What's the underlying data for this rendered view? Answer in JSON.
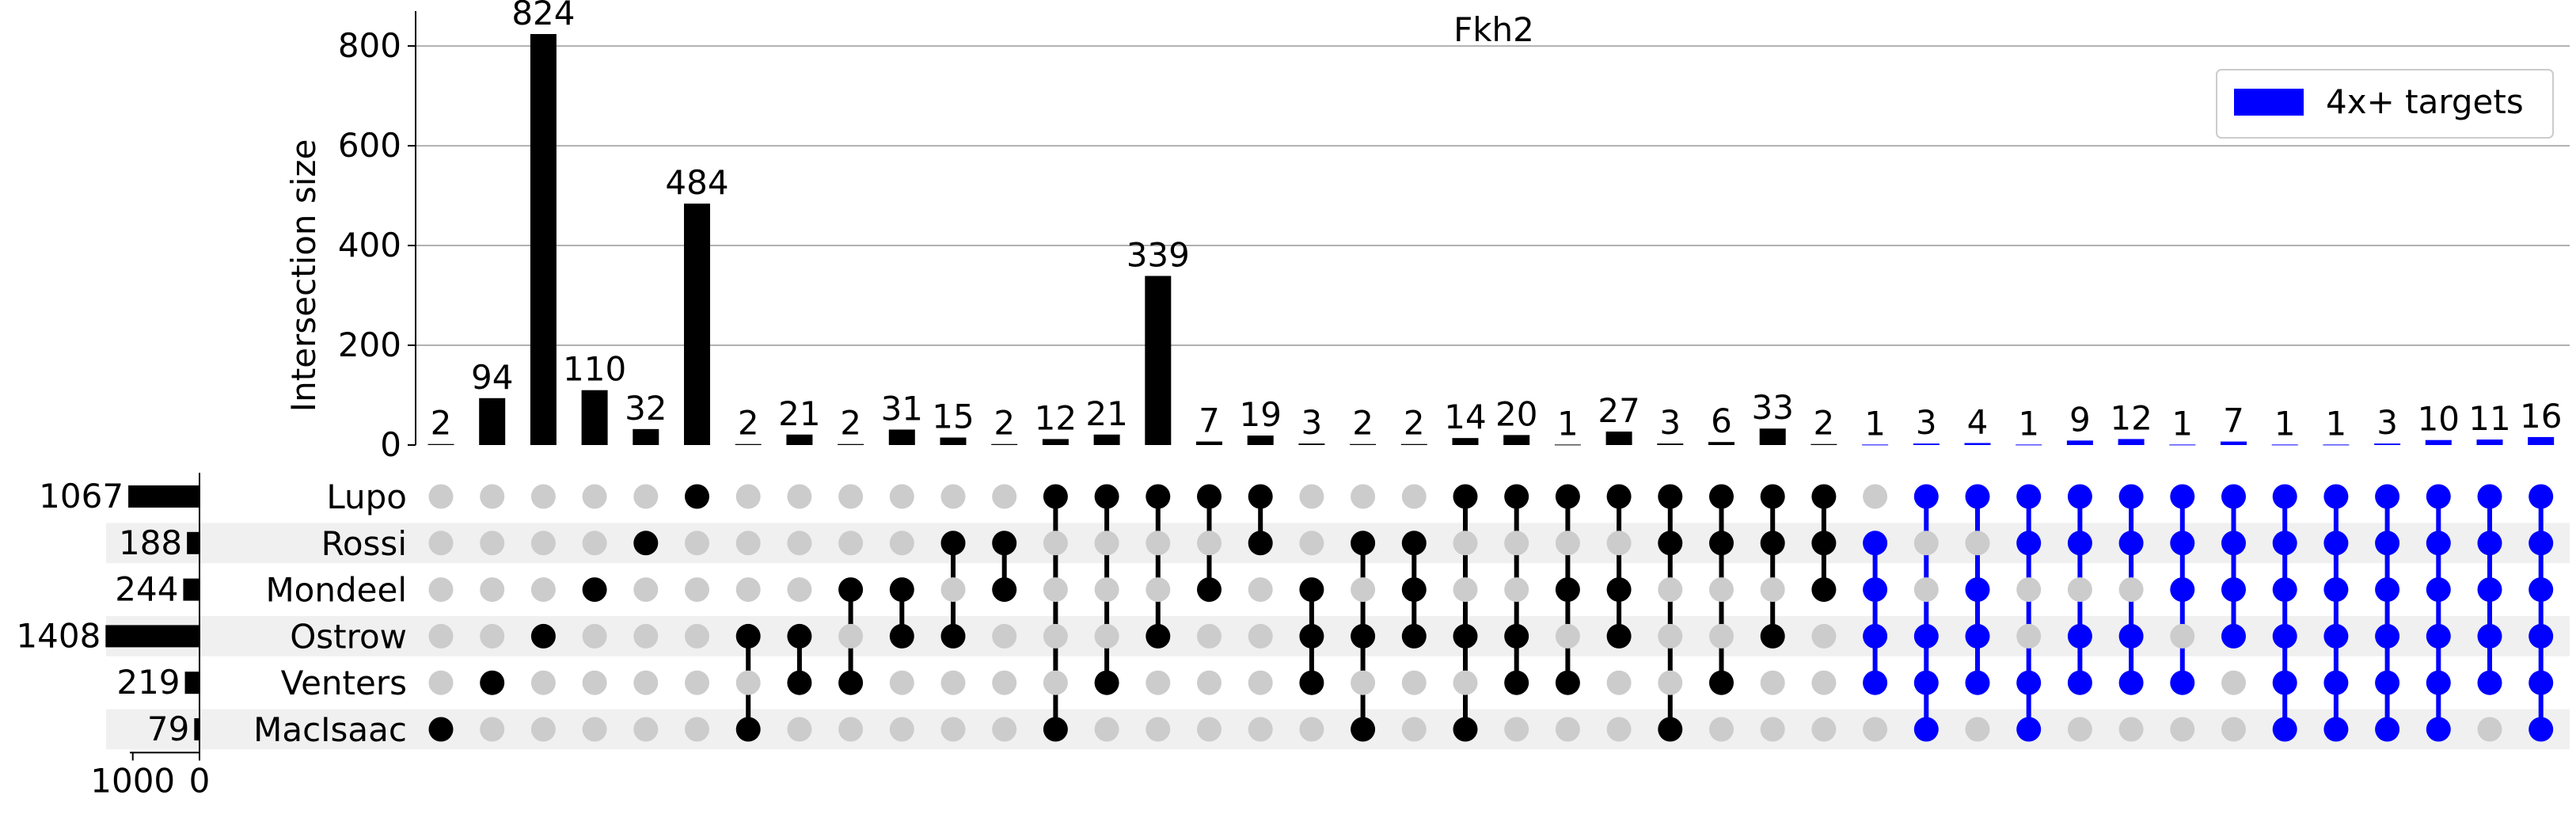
{
  "chart_data": {
    "type": "upset",
    "title": "Fkh2",
    "ylabel": "Intersection size",
    "ylim": [
      0,
      870
    ],
    "yticks": [
      0,
      200,
      400,
      600,
      800
    ],
    "grid": true,
    "legend": {
      "label": "4x+ targets",
      "color": "#0000ff",
      "position": "top-right"
    },
    "sets": [
      {
        "name": "Lupo",
        "size": 1067
      },
      {
        "name": "Rossi",
        "size": 188
      },
      {
        "name": "Mondeel",
        "size": 244
      },
      {
        "name": "Ostrow",
        "size": 1408
      },
      {
        "name": "Venters",
        "size": 219
      },
      {
        "name": "MacIsaac",
        "size": 79
      }
    ],
    "set_size_axis": {
      "ticks": [
        1000,
        0
      ],
      "max": 1400
    },
    "intersections": [
      {
        "value": 2,
        "members": [
          "MacIsaac"
        ],
        "highlight": false
      },
      {
        "value": 94,
        "members": [
          "Venters"
        ],
        "highlight": false
      },
      {
        "value": 824,
        "members": [
          "Ostrow"
        ],
        "highlight": false
      },
      {
        "value": 110,
        "members": [
          "Mondeel"
        ],
        "highlight": false
      },
      {
        "value": 32,
        "members": [
          "Rossi"
        ],
        "highlight": false
      },
      {
        "value": 484,
        "members": [
          "Lupo"
        ],
        "highlight": false
      },
      {
        "value": 2,
        "members": [
          "Ostrow",
          "MacIsaac"
        ],
        "highlight": false
      },
      {
        "value": 21,
        "members": [
          "Ostrow",
          "Venters"
        ],
        "highlight": false
      },
      {
        "value": 2,
        "members": [
          "Mondeel",
          "Venters"
        ],
        "highlight": false
      },
      {
        "value": 31,
        "members": [
          "Mondeel",
          "Ostrow"
        ],
        "highlight": false
      },
      {
        "value": 15,
        "members": [
          "Rossi",
          "Ostrow"
        ],
        "highlight": false
      },
      {
        "value": 2,
        "members": [
          "Rossi",
          "Mondeel"
        ],
        "highlight": false
      },
      {
        "value": 12,
        "members": [
          "Lupo",
          "MacIsaac"
        ],
        "highlight": false
      },
      {
        "value": 21,
        "members": [
          "Lupo",
          "Venters"
        ],
        "highlight": false
      },
      {
        "value": 339,
        "members": [
          "Lupo",
          "Ostrow"
        ],
        "highlight": false
      },
      {
        "value": 7,
        "members": [
          "Lupo",
          "Mondeel"
        ],
        "highlight": false
      },
      {
        "value": 19,
        "members": [
          "Lupo",
          "Rossi"
        ],
        "highlight": false
      },
      {
        "value": 3,
        "members": [
          "Mondeel",
          "Ostrow",
          "Venters"
        ],
        "highlight": false
      },
      {
        "value": 2,
        "members": [
          "Rossi",
          "Ostrow",
          "MacIsaac"
        ],
        "highlight": false
      },
      {
        "value": 2,
        "members": [
          "Rossi",
          "Mondeel",
          "Ostrow"
        ],
        "highlight": false
      },
      {
        "value": 14,
        "members": [
          "Lupo",
          "Ostrow",
          "MacIsaac"
        ],
        "highlight": false
      },
      {
        "value": 20,
        "members": [
          "Lupo",
          "Ostrow",
          "Venters"
        ],
        "highlight": false
      },
      {
        "value": 1,
        "members": [
          "Lupo",
          "Mondeel",
          "Venters"
        ],
        "highlight": false
      },
      {
        "value": 27,
        "members": [
          "Lupo",
          "Mondeel",
          "Ostrow"
        ],
        "highlight": false
      },
      {
        "value": 3,
        "members": [
          "Lupo",
          "Rossi",
          "MacIsaac"
        ],
        "highlight": false
      },
      {
        "value": 6,
        "members": [
          "Lupo",
          "Rossi",
          "Venters"
        ],
        "highlight": false
      },
      {
        "value": 33,
        "members": [
          "Lupo",
          "Rossi",
          "Ostrow"
        ],
        "highlight": false
      },
      {
        "value": 2,
        "members": [
          "Lupo",
          "Rossi",
          "Mondeel"
        ],
        "highlight": false
      },
      {
        "value": 1,
        "members": [
          "Rossi",
          "Mondeel",
          "Ostrow",
          "Venters"
        ],
        "highlight": true
      },
      {
        "value": 3,
        "members": [
          "Lupo",
          "Ostrow",
          "Venters",
          "MacIsaac"
        ],
        "highlight": true
      },
      {
        "value": 4,
        "members": [
          "Lupo",
          "Mondeel",
          "Ostrow",
          "Venters"
        ],
        "highlight": true
      },
      {
        "value": 1,
        "members": [
          "Lupo",
          "Rossi",
          "Venters",
          "MacIsaac"
        ],
        "highlight": true
      },
      {
        "value": 9,
        "members": [
          "Lupo",
          "Rossi",
          "Ostrow",
          "Venters"
        ],
        "highlight": true
      },
      {
        "value": 12,
        "members": [
          "Lupo",
          "Rossi",
          "Ostrow",
          "Venters"
        ],
        "highlight": true
      },
      {
        "value": 1,
        "members": [
          "Lupo",
          "Rossi",
          "Mondeel",
          "Venters"
        ],
        "highlight": true
      },
      {
        "value": 7,
        "members": [
          "Lupo",
          "Rossi",
          "Mondeel",
          "Ostrow"
        ],
        "highlight": true
      },
      {
        "value": 1,
        "members": [
          "Lupo",
          "Rossi",
          "Mondeel",
          "Ostrow",
          "Venters",
          "MacIsaac"
        ],
        "highlight": true
      },
      {
        "value": 1,
        "members": [
          "Lupo",
          "Rossi",
          "Mondeel",
          "Ostrow",
          "Venters",
          "MacIsaac"
        ],
        "highlight": true
      },
      {
        "value": 3,
        "members": [
          "Lupo",
          "Rossi",
          "Mondeel",
          "Ostrow",
          "Venters",
          "MacIsaac"
        ],
        "highlight": true
      },
      {
        "value": 10,
        "members": [
          "Lupo",
          "Rossi",
          "Mondeel",
          "Ostrow",
          "Venters",
          "MacIsaac"
        ],
        "highlight": true
      },
      {
        "value": 11,
        "members": [
          "Lupo",
          "Rossi",
          "Mondeel",
          "Ostrow",
          "Venters"
        ],
        "highlight": true
      },
      {
        "value": 16,
        "members": [
          "Lupo",
          "Rossi",
          "Mondeel",
          "Ostrow",
          "Venters",
          "MacIsaac"
        ],
        "highlight": true
      }
    ],
    "colors": {
      "default": "#000000",
      "highlight": "#0000ff",
      "inactive_dot": "#cccccc",
      "stripe": "#f0f0f0",
      "grid": "#b0b0b0"
    }
  }
}
